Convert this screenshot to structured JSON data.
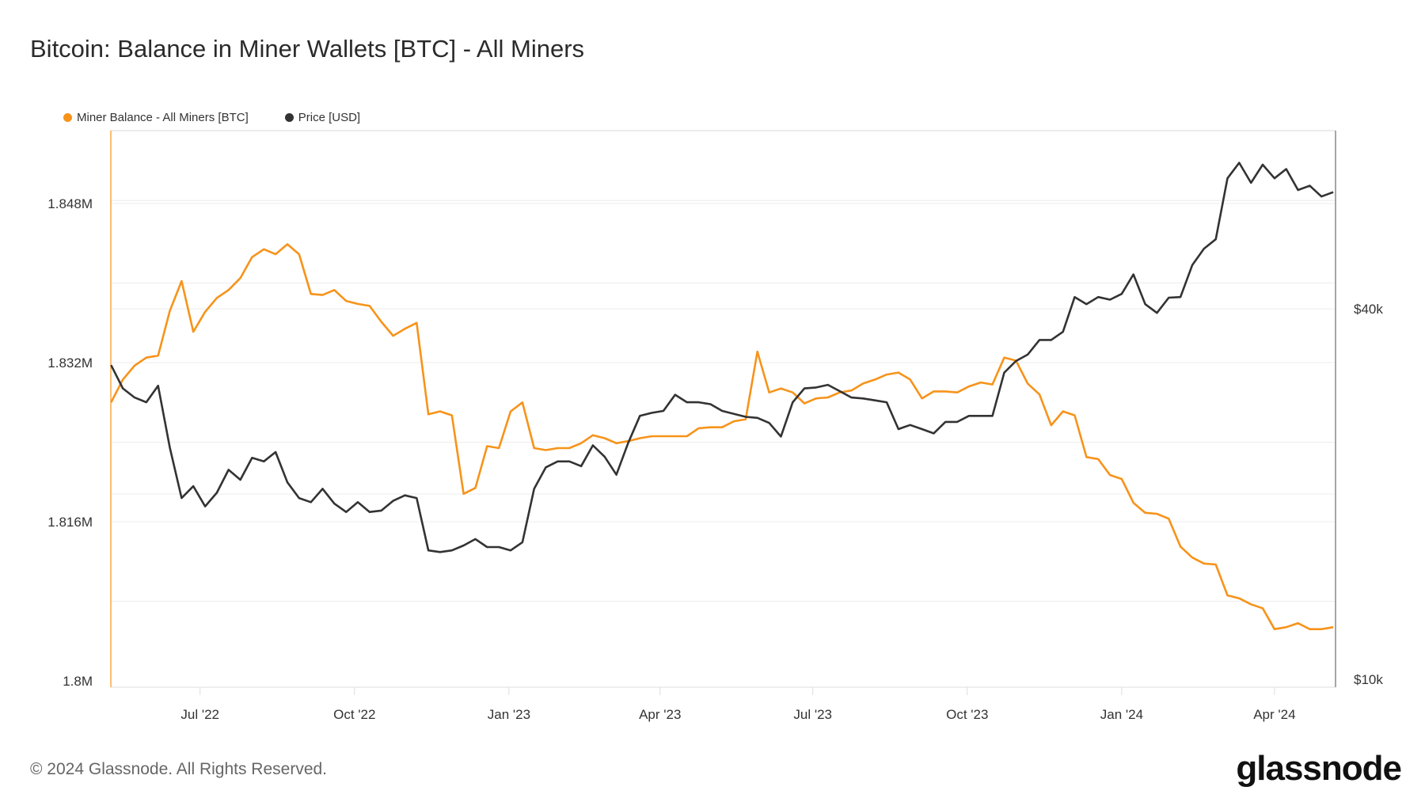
{
  "title": "Bitcoin: Balance in Miner Wallets [BTC] - All Miners",
  "footer": "© 2024 Glassnode. All Rights Reserved.",
  "logo": "glassnode",
  "chart_data": {
    "type": "line",
    "title": "Bitcoin: Balance in Miner Wallets [BTC] - All Miners",
    "legend_position": "top-left",
    "grid": true,
    "x_ticks": [
      {
        "date": "2022-07-01",
        "label": "Jul '22"
      },
      {
        "date": "2022-10-01",
        "label": "Oct '22"
      },
      {
        "date": "2023-01-01",
        "label": "Jan '23"
      },
      {
        "date": "2023-04-01",
        "label": "Apr '23"
      },
      {
        "date": "2023-07-01",
        "label": "Jul '23"
      },
      {
        "date": "2023-10-01",
        "label": "Oct '23"
      },
      {
        "date": "2024-01-01",
        "label": "Jan '24"
      },
      {
        "date": "2024-04-01",
        "label": "Apr '24"
      }
    ],
    "xlim": [
      "2022-05-09",
      "2024-05-06"
    ],
    "y_left": {
      "ylim": [
        1800000,
        1856000
      ],
      "ticks": [
        {
          "value": 1800000,
          "label": "1.8M"
        },
        {
          "value": 1816000,
          "label": "1.816M"
        },
        {
          "value": 1832000,
          "label": "1.832M"
        },
        {
          "value": 1848000,
          "label": "1.848M"
        }
      ]
    },
    "y_right": {
      "scale": "log",
      "ylim": [
        10000,
        78000
      ],
      "ticks": [
        {
          "value": 10000,
          "label": "$10k"
        },
        {
          "value": 40000,
          "label": "$40k"
        }
      ]
    },
    "dates": [
      "2022-05-09",
      "2022-05-16",
      "2022-05-23",
      "2022-05-30",
      "2022-06-06",
      "2022-06-13",
      "2022-06-20",
      "2022-06-27",
      "2022-07-04",
      "2022-07-11",
      "2022-07-18",
      "2022-07-25",
      "2022-08-01",
      "2022-08-08",
      "2022-08-15",
      "2022-08-22",
      "2022-08-29",
      "2022-09-05",
      "2022-09-12",
      "2022-09-19",
      "2022-09-26",
      "2022-10-03",
      "2022-10-10",
      "2022-10-17",
      "2022-10-24",
      "2022-10-31",
      "2022-11-07",
      "2022-11-14",
      "2022-11-21",
      "2022-11-28",
      "2022-12-05",
      "2022-12-12",
      "2022-12-19",
      "2022-12-26",
      "2023-01-02",
      "2023-01-09",
      "2023-01-16",
      "2023-01-23",
      "2023-01-30",
      "2023-02-06",
      "2023-02-13",
      "2023-02-20",
      "2023-02-27",
      "2023-03-06",
      "2023-03-13",
      "2023-03-20",
      "2023-03-27",
      "2023-04-03",
      "2023-04-10",
      "2023-04-17",
      "2023-04-24",
      "2023-05-01",
      "2023-05-08",
      "2023-05-15",
      "2023-05-22",
      "2023-05-29",
      "2023-06-05",
      "2023-06-12",
      "2023-06-19",
      "2023-06-26",
      "2023-07-03",
      "2023-07-10",
      "2023-07-17",
      "2023-07-24",
      "2023-07-31",
      "2023-08-07",
      "2023-08-14",
      "2023-08-21",
      "2023-08-28",
      "2023-09-04",
      "2023-09-11",
      "2023-09-18",
      "2023-09-25",
      "2023-10-02",
      "2023-10-09",
      "2023-10-16",
      "2023-10-23",
      "2023-10-30",
      "2023-11-06",
      "2023-11-13",
      "2023-11-20",
      "2023-11-27",
      "2023-12-04",
      "2023-12-11",
      "2023-12-18",
      "2023-12-25",
      "2024-01-01",
      "2024-01-08",
      "2024-01-15",
      "2024-01-22",
      "2024-01-29",
      "2024-02-05",
      "2024-02-12",
      "2024-02-19",
      "2024-02-26",
      "2024-03-04",
      "2024-03-11",
      "2024-03-18",
      "2024-03-25",
      "2024-04-01",
      "2024-04-08",
      "2024-04-15",
      "2024-04-22",
      "2024-04-29",
      "2024-05-06"
    ],
    "series": [
      {
        "name": "Miner Balance - All Miners [BTC]",
        "axis": "left",
        "color": "#f7931a",
        "values": [
          1828000,
          1830300,
          1831700,
          1832500,
          1832700,
          1837200,
          1840200,
          1835100,
          1837100,
          1838500,
          1839300,
          1840500,
          1842600,
          1843400,
          1842900,
          1843900,
          1842900,
          1838900,
          1838800,
          1839300,
          1838200,
          1837900,
          1837700,
          1836100,
          1834700,
          1835400,
          1836000,
          1826800,
          1827100,
          1826700,
          1818800,
          1819400,
          1823600,
          1823400,
          1827100,
          1828000,
          1823400,
          1823200,
          1823400,
          1823400,
          1823900,
          1824700,
          1824400,
          1823900,
          1824100,
          1824400,
          1824600,
          1824600,
          1824600,
          1824600,
          1825400,
          1825500,
          1825500,
          1826100,
          1826300,
          1833100,
          1829000,
          1829400,
          1829000,
          1827900,
          1828400,
          1828500,
          1829000,
          1829200,
          1829900,
          1830300,
          1830800,
          1831000,
          1830300,
          1828400,
          1829100,
          1829100,
          1829000,
          1829600,
          1830000,
          1829800,
          1832500,
          1832200,
          1829900,
          1828800,
          1825700,
          1827100,
          1826700,
          1822500,
          1822300,
          1820700,
          1820300,
          1817900,
          1816900,
          1816800,
          1816300,
          1813500,
          1812400,
          1811800,
          1811700,
          1808600,
          1808300,
          1807700,
          1807300,
          1805200,
          1805400,
          1805800,
          1805200,
          1805200,
          1805400
        ]
      },
      {
        "name": "Price [USD]",
        "axis": "right",
        "color": "#333333",
        "values": [
          32400,
          29700,
          28700,
          28200,
          30000,
          23800,
          19700,
          20600,
          19100,
          20100,
          21900,
          21100,
          22900,
          22600,
          23400,
          20900,
          19700,
          19400,
          20400,
          19300,
          18700,
          19400,
          18700,
          18800,
          19500,
          19900,
          19700,
          16200,
          16100,
          16200,
          16500,
          16900,
          16400,
          16400,
          16200,
          16700,
          20400,
          22100,
          22600,
          22600,
          22200,
          24000,
          23000,
          21500,
          24200,
          26800,
          27100,
          27300,
          29000,
          28200,
          28200,
          28000,
          27300,
          27000,
          26700,
          26600,
          26100,
          24800,
          28200,
          29700,
          29800,
          30100,
          29400,
          28700,
          28600,
          28400,
          28200,
          25500,
          25900,
          25500,
          25100,
          26200,
          26200,
          26800,
          26800,
          26800,
          31500,
          32900,
          33700,
          35600,
          35600,
          36700,
          41800,
          40700,
          41800,
          41400,
          42300,
          45500,
          40700,
          39400,
          41700,
          41800,
          47100,
          50100,
          51900,
          65200,
          69100,
          64100,
          68600,
          65200,
          67500,
          62400,
          63400,
          60900,
          61900
        ]
      }
    ]
  }
}
